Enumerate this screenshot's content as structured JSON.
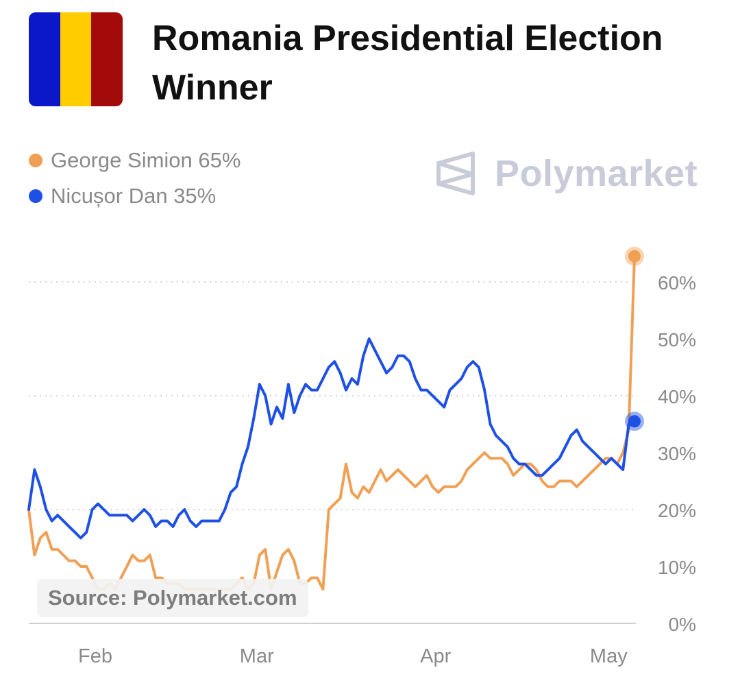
{
  "header": {
    "title": "Romania Presidential Election Winner",
    "flag_colors": [
      "#0a18c9",
      "#ffcc00",
      "#a30a0a"
    ]
  },
  "legend": [
    {
      "label": "George Simion 65%",
      "color": "#f0a055"
    },
    {
      "label": "Nicușor Dan 35%",
      "color": "#1e50e6"
    }
  ],
  "brand": {
    "name": "Polymarket",
    "icon": "polymarket-logo-icon",
    "color": "#c9ccd8"
  },
  "source": "Source: Polymarket.com",
  "chart_data": {
    "type": "line",
    "title": "Romania Presidential Election Winner",
    "xlabel": "",
    "ylabel": "",
    "x_ticks": [
      "Feb",
      "Mar",
      "Apr",
      "May"
    ],
    "y_ticks": [
      "0%",
      "10%",
      "20%",
      "30%",
      "40%",
      "50%",
      "60%"
    ],
    "ylim": [
      0,
      65
    ],
    "grid": "horizontal dotted",
    "y_axis_position": "right",
    "legend_position": "top-left",
    "x_dates": [
      "Jan 20",
      "Jan 21",
      "Jan 22",
      "Jan 23",
      "Jan 24",
      "Jan 25",
      "Jan 26",
      "Jan 27",
      "Jan 28",
      "Jan 29",
      "Jan 30",
      "Jan 31",
      "Feb 1",
      "Feb 2",
      "Feb 3",
      "Feb 4",
      "Feb 5",
      "Feb 6",
      "Feb 7",
      "Feb 8",
      "Feb 9",
      "Feb 10",
      "Feb 11",
      "Feb 12",
      "Feb 13",
      "Feb 14",
      "Feb 15",
      "Feb 16",
      "Feb 17",
      "Feb 18",
      "Feb 19",
      "Feb 20",
      "Feb 21",
      "Feb 22",
      "Feb 23",
      "Feb 24",
      "Feb 25",
      "Feb 26",
      "Feb 27",
      "Feb 28",
      "Mar 1",
      "Mar 2",
      "Mar 3",
      "Mar 4",
      "Mar 5",
      "Mar 6",
      "Mar 7",
      "Mar 8",
      "Mar 9",
      "Mar 10",
      "Mar 11",
      "Mar 12",
      "Mar 13",
      "Mar 14",
      "Mar 15",
      "Mar 16",
      "Mar 17",
      "Mar 18",
      "Mar 19",
      "Mar 20",
      "Mar 21",
      "Mar 22",
      "Mar 23",
      "Mar 24",
      "Mar 25",
      "Mar 26",
      "Mar 27",
      "Mar 28",
      "Mar 29",
      "Mar 30",
      "Mar 31",
      "Apr 1",
      "Apr 2",
      "Apr 3",
      "Apr 4",
      "Apr 5",
      "Apr 6",
      "Apr 7",
      "Apr 8",
      "Apr 9",
      "Apr 10",
      "Apr 11",
      "Apr 12",
      "Apr 13",
      "Apr 14",
      "Apr 15",
      "Apr 16",
      "Apr 17",
      "Apr 18",
      "Apr 19",
      "Apr 20",
      "Apr 21",
      "Apr 22",
      "Apr 23",
      "Apr 24",
      "Apr 25",
      "Apr 26",
      "Apr 27",
      "Apr 28",
      "Apr 29",
      "Apr 30",
      "May 1",
      "May 2",
      "May 3",
      "May 4",
      "May 5"
    ],
    "series": [
      {
        "name": "George Simion",
        "color": "#f0a055",
        "values": [
          20,
          12,
          15,
          16,
          13,
          13,
          12,
          11,
          11,
          10,
          10,
          8,
          6,
          6,
          7,
          6,
          8,
          10,
          12,
          11,
          11,
          12,
          8,
          8,
          7,
          7,
          7,
          6,
          6,
          6,
          6,
          6,
          6,
          6,
          6,
          6,
          7,
          8,
          6,
          7,
          12,
          13,
          6,
          9,
          12,
          13,
          11,
          7,
          7,
          8,
          8,
          6,
          20,
          21,
          22,
          28,
          23,
          22,
          24,
          23,
          25,
          27,
          25,
          26,
          27,
          26,
          25,
          24,
          25,
          26,
          24,
          23,
          24,
          24,
          24,
          25,
          27,
          28,
          29,
          30,
          29,
          29,
          29,
          28,
          26,
          27,
          28,
          28,
          27,
          25,
          24,
          24,
          25,
          25,
          25,
          24,
          25,
          26,
          27,
          28,
          29,
          29,
          28,
          30,
          34,
          64.5
        ]
      },
      {
        "name": "Nicușor Dan",
        "color": "#1e50e6",
        "values": [
          20,
          27,
          24,
          20,
          18,
          19,
          18,
          17,
          16,
          15,
          16,
          20,
          21,
          20,
          19,
          19,
          19,
          19,
          18,
          19,
          20,
          19,
          17,
          18,
          18,
          17,
          19,
          20,
          18,
          17,
          18,
          18,
          18,
          18,
          20,
          23,
          24,
          28,
          31,
          36,
          42,
          40,
          35,
          38,
          36,
          42,
          37,
          40,
          42,
          41,
          41,
          43,
          45,
          46,
          44,
          41,
          43,
          42,
          47,
          50,
          48,
          46,
          44,
          45,
          47,
          47,
          46,
          43,
          41,
          41,
          40,
          39,
          38,
          41,
          42,
          43,
          45,
          46,
          45,
          41,
          35,
          33,
          32,
          31,
          29,
          28,
          28,
          27,
          26,
          26,
          27,
          28,
          29,
          31,
          33,
          34,
          32,
          31,
          30,
          29,
          28,
          29,
          28,
          27,
          35,
          35.5
        ]
      }
    ]
  }
}
